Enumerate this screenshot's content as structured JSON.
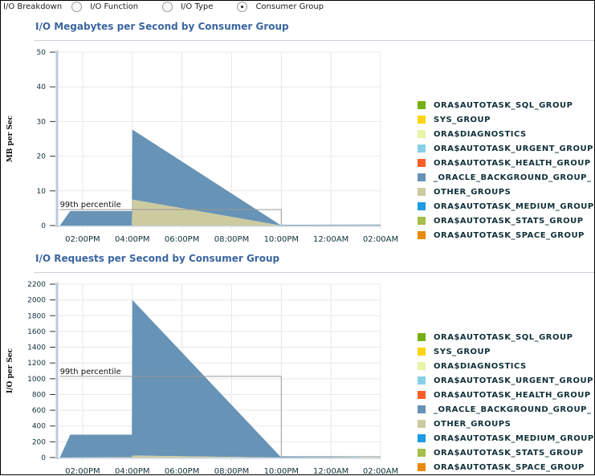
{
  "breakdown": {
    "label": "I/O Breakdown",
    "options": [
      {
        "label": "I/O Function",
        "selected": false
      },
      {
        "label": "I/O Type",
        "selected": false
      },
      {
        "label": "Consumer Group",
        "selected": true
      }
    ]
  },
  "legend": [
    {
      "name": "ORA$AUTOTASK_SQL_GROUP",
      "color": "#76b010"
    },
    {
      "name": "SYS_GROUP",
      "color": "#ffd30f"
    },
    {
      "name": "ORA$DIAGNOSTICS",
      "color": "#e2f5a8"
    },
    {
      "name": "ORA$AUTOTASK_URGENT_GROUP",
      "color": "#88d0e6"
    },
    {
      "name": "ORA$AUTOTASK_HEALTH_GROUP",
      "color": "#f85f28"
    },
    {
      "name": "_ORACLE_BACKGROUND_GROUP_",
      "color": "#6693b6"
    },
    {
      "name": "OTHER_GROUPS",
      "color": "#ccca9f"
    },
    {
      "name": "ORA$AUTOTASK_MEDIUM_GROUP",
      "color": "#1e9ae0"
    },
    {
      "name": "ORA$AUTOTASK_STATS_GROUP",
      "color": "#a5bf4d"
    },
    {
      "name": "ORA$AUTOTASK_SPACE_GROUP",
      "color": "#e88a0c"
    }
  ],
  "chart_data": [
    {
      "type": "area",
      "title": "I/O Megabytes per Second by Consumer Group",
      "ylabel": "MB per Sec",
      "ylim": [
        0,
        50
      ],
      "yticks": [
        "0",
        "10",
        "20",
        "30",
        "40",
        "50"
      ],
      "xticks": [
        "02:00PM",
        "04:00PM",
        "06:00PM",
        "08:00PM",
        "10:00PM",
        "12:00AM",
        "02:00AM"
      ],
      "xrange": [
        "1:00PM",
        "2:00AM"
      ],
      "grid": true,
      "percentile": {
        "label": "99th percentile",
        "value": 4.6,
        "from": "1:05PM",
        "to": "10:00PM"
      },
      "series": [
        {
          "name": "OTHER_GROUPS",
          "points": [
            [
              "1:05PM",
              0
            ],
            [
              "3:59PM",
              0
            ],
            [
              "4:00PM",
              7.5
            ],
            [
              "10:00PM",
              0
            ],
            [
              "2:00AM",
              0.1
            ]
          ]
        },
        {
          "name": "_ORACLE_BACKGROUND_GROUP_",
          "points": [
            [
              "1:05PM",
              0
            ],
            [
              "1:30PM",
              4.2
            ],
            [
              "3:59PM",
              4.2
            ],
            [
              "4:00PM",
              20.2
            ],
            [
              "10:00PM",
              0
            ],
            [
              "10:01PM",
              0.2
            ],
            [
              "2:00AM",
              0.2
            ]
          ]
        }
      ]
    },
    {
      "type": "area",
      "title": "I/O Requests per Second by Consumer Group",
      "ylabel": "I/O per Sec",
      "ylim": [
        0,
        2200
      ],
      "yticks": [
        "0",
        "200",
        "400",
        "600",
        "800",
        "1000",
        "1200",
        "1400",
        "1600",
        "1800",
        "2000",
        "2200"
      ],
      "xticks": [
        "02:00PM",
        "04:00PM",
        "06:00PM",
        "08:00PM",
        "10:00PM",
        "12:00AM",
        "02:00AM"
      ],
      "xrange": [
        "1:00PM",
        "2:00AM"
      ],
      "grid": true,
      "percentile": {
        "label": "99th percentile",
        "value": 1030,
        "from": "1:05PM",
        "to": "10:00PM"
      },
      "series": [
        {
          "name": "OTHER_GROUPS",
          "points": [
            [
              "1:05PM",
              0
            ],
            [
              "3:59PM",
              5
            ],
            [
              "4:00PM",
              25
            ],
            [
              "10:00PM",
              0
            ],
            [
              "2:00AM",
              10
            ]
          ]
        },
        {
          "name": "_ORACLE_BACKGROUND_GROUP_",
          "points": [
            [
              "1:05PM",
              0
            ],
            [
              "1:30PM",
              290
            ],
            [
              "3:59PM",
              285
            ],
            [
              "4:00PM",
              1975
            ],
            [
              "10:00PM",
              0
            ],
            [
              "10:01PM",
              15
            ],
            [
              "2:00AM",
              5
            ]
          ]
        }
      ]
    }
  ]
}
